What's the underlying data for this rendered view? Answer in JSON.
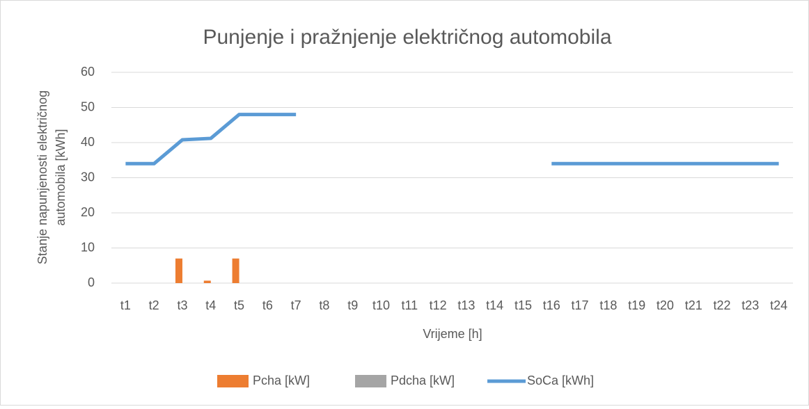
{
  "chart_data": {
    "type": "combo",
    "title": "Punjenje i pražnjenje električnog automobila",
    "x_label": "Vrijeme [h]",
    "y_label": [
      "Stanje napunjenosti električnog",
      "automobila [kWh]"
    ],
    "categories": [
      "t1",
      "t2",
      "t3",
      "t4",
      "t5",
      "t6",
      "t7",
      "t8",
      "t9",
      "t10",
      "t11",
      "t12",
      "t13",
      "t14",
      "t15",
      "t16",
      "t17",
      "t18",
      "t19",
      "t20",
      "t21",
      "t22",
      "t23",
      "t24"
    ],
    "series": [
      {
        "name": "Pcha [kW]",
        "type": "bar",
        "color": "#ed7d31",
        "values": [
          0,
          0,
          7,
          0.7,
          7,
          0,
          0,
          0,
          0,
          0,
          0,
          0,
          0,
          0,
          0,
          0,
          0,
          0,
          0,
          0,
          0,
          0,
          0,
          0
        ]
      },
      {
        "name": "Pdcha [kW]",
        "type": "bar",
        "color": "#a5a5a5",
        "values": [
          0,
          0,
          0,
          0,
          0,
          0,
          0,
          0,
          0,
          0,
          0,
          0,
          0,
          0,
          0,
          0,
          0,
          0,
          0,
          0,
          0,
          0,
          0,
          0
        ]
      },
      {
        "name": "SoCa [kWh]",
        "type": "line",
        "color": "#5b9bd5",
        "values": [
          34,
          34,
          40.8,
          41.2,
          48,
          48,
          48,
          null,
          null,
          null,
          null,
          null,
          null,
          null,
          null,
          34,
          34,
          34,
          34,
          34,
          34,
          34,
          34,
          34
        ]
      }
    ],
    "ylim": [
      0,
      60
    ],
    "yticks": [
      0,
      10,
      20,
      30,
      40,
      50,
      60
    ],
    "grid": true,
    "legend": "bottom"
  }
}
